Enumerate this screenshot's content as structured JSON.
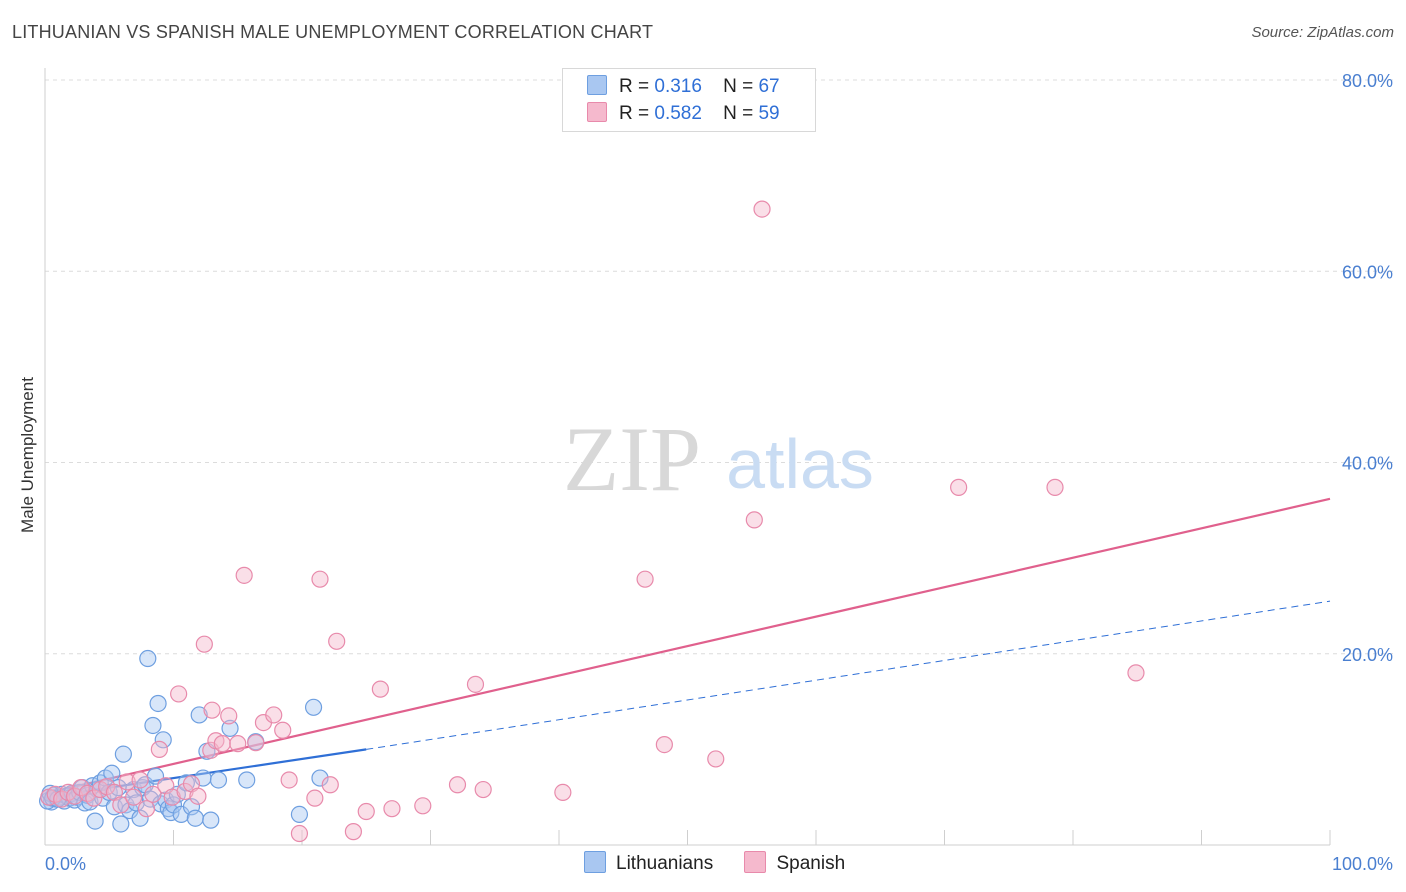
{
  "header": {
    "title": "LITHUANIAN VS SPANISH MALE UNEMPLOYMENT CORRELATION CHART",
    "source": "Source: ZipAtlas.com"
  },
  "watermark": {
    "zip": "ZIP",
    "atlas": "atlas"
  },
  "legend": {
    "rows": [
      {
        "r_label": "R =",
        "r_value": "0.316",
        "n_label": "N =",
        "n_value": "67",
        "color": "#a9c7f1"
      },
      {
        "r_label": "R =",
        "r_value": "0.582",
        "n_label": "N =",
        "n_value": "59",
        "color": "#f5b9cd"
      }
    ]
  },
  "bottom_legend": {
    "items": [
      {
        "label": "Lithuanians",
        "color": "#a9c7f1"
      },
      {
        "label": "Spanish",
        "color": "#f5b9cd"
      }
    ]
  },
  "colors": {
    "blue_fill": "#a9c7f1",
    "blue_stroke": "#6e9fe0",
    "blue_line": "#2f6fd6",
    "pink_fill": "#f5b9cd",
    "pink_stroke": "#e88aab",
    "pink_line": "#e0608d",
    "grid": "#dcdcdc",
    "tick_text": "#4a7fd0"
  },
  "chart_data": {
    "type": "scatter",
    "title": "LITHUANIAN VS SPANISH MALE UNEMPLOYMENT CORRELATION CHART",
    "xlabel": "",
    "ylabel": "Male Unemployment",
    "xlim": [
      0,
      100
    ],
    "ylim": [
      0,
      80
    ],
    "x_tick_labels": [
      {
        "value": 0,
        "label": "0.0%"
      },
      {
        "value": 100,
        "label": "100.0%"
      }
    ],
    "y_tick_labels": [
      {
        "value": 20,
        "label": "20.0%"
      },
      {
        "value": 40,
        "label": "40.0%"
      },
      {
        "value": 60,
        "label": "60.0%"
      },
      {
        "value": 80,
        "label": "80.0%"
      }
    ],
    "series": [
      {
        "name": "Lithuanians",
        "color": "#a9c7f1",
        "points": [
          [
            0.3,
            5.0
          ],
          [
            0.5,
            4.5
          ],
          [
            0.7,
            5.2
          ],
          [
            0.9,
            4.8
          ],
          [
            1.1,
            5.0
          ],
          [
            1.3,
            5.3
          ],
          [
            1.5,
            4.6
          ],
          [
            1.7,
            5.1
          ],
          [
            1.9,
            4.9
          ],
          [
            2.1,
            5.4
          ],
          [
            2.3,
            4.7
          ],
          [
            2.5,
            5.0
          ],
          [
            2.7,
            5.5
          ],
          [
            2.9,
            6.0
          ],
          [
            3.1,
            4.4
          ],
          [
            3.3,
            5.2
          ],
          [
            3.5,
            4.5
          ],
          [
            3.7,
            6.2
          ],
          [
            3.9,
            2.5
          ],
          [
            4.1,
            5.8
          ],
          [
            4.3,
            6.5
          ],
          [
            4.5,
            4.9
          ],
          [
            4.7,
            7.0
          ],
          [
            5.0,
            5.5
          ],
          [
            5.2,
            7.5
          ],
          [
            5.4,
            4.0
          ],
          [
            5.7,
            6.0
          ],
          [
            5.9,
            2.2
          ],
          [
            6.1,
            9.5
          ],
          [
            6.3,
            4.2
          ],
          [
            6.6,
            3.6
          ],
          [
            6.9,
            5.8
          ],
          [
            7.1,
            4.4
          ],
          [
            7.4,
            2.8
          ],
          [
            7.6,
            6.0
          ],
          [
            7.8,
            6.3
          ],
          [
            8.0,
            19.5
          ],
          [
            8.2,
            4.8
          ],
          [
            8.4,
            12.5
          ],
          [
            8.6,
            7.2
          ],
          [
            8.8,
            14.8
          ],
          [
            9.0,
            4.3
          ],
          [
            9.2,
            11.0
          ],
          [
            9.4,
            4.7
          ],
          [
            9.6,
            3.8
          ],
          [
            9.8,
            3.4
          ],
          [
            10.0,
            4.2
          ],
          [
            10.3,
            5.3
          ],
          [
            10.6,
            3.2
          ],
          [
            11.0,
            6.5
          ],
          [
            11.4,
            4.0
          ],
          [
            11.7,
            2.8
          ],
          [
            12.0,
            13.6
          ],
          [
            12.3,
            7.0
          ],
          [
            12.6,
            9.8
          ],
          [
            12.9,
            2.6
          ],
          [
            13.5,
            6.8
          ],
          [
            14.4,
            12.2
          ],
          [
            15.7,
            6.8
          ],
          [
            16.4,
            10.8
          ],
          [
            19.8,
            3.2
          ],
          [
            20.9,
            14.4
          ],
          [
            21.4,
            7.0
          ],
          [
            0.2,
            4.6
          ],
          [
            0.4,
            5.4
          ],
          [
            0.6,
            4.9
          ],
          [
            1.0,
            4.8
          ]
        ]
      },
      {
        "name": "Spanish",
        "color": "#f5b9cd",
        "points": [
          [
            0.3,
            5.0
          ],
          [
            0.8,
            5.3
          ],
          [
            1.3,
            4.8
          ],
          [
            1.8,
            5.5
          ],
          [
            2.3,
            5.1
          ],
          [
            2.8,
            6.0
          ],
          [
            3.3,
            5.4
          ],
          [
            3.8,
            4.9
          ],
          [
            4.3,
            5.8
          ],
          [
            4.8,
            6.1
          ],
          [
            5.4,
            5.5
          ],
          [
            5.9,
            4.2
          ],
          [
            6.4,
            6.6
          ],
          [
            6.9,
            5.0
          ],
          [
            7.4,
            6.8
          ],
          [
            7.9,
            3.8
          ],
          [
            8.4,
            5.3
          ],
          [
            8.9,
            10.0
          ],
          [
            9.4,
            6.2
          ],
          [
            9.9,
            5.0
          ],
          [
            10.4,
            15.8
          ],
          [
            10.9,
            5.6
          ],
          [
            11.4,
            6.4
          ],
          [
            11.9,
            5.1
          ],
          [
            12.4,
            21.0
          ],
          [
            12.9,
            9.9
          ],
          [
            13.0,
            14.1
          ],
          [
            13.3,
            10.9
          ],
          [
            13.8,
            10.6
          ],
          [
            14.3,
            13.5
          ],
          [
            15.0,
            10.6
          ],
          [
            15.5,
            28.2
          ],
          [
            16.4,
            10.7
          ],
          [
            17.0,
            12.8
          ],
          [
            17.8,
            13.6
          ],
          [
            18.5,
            12.0
          ],
          [
            19.0,
            6.8
          ],
          [
            19.8,
            1.2
          ],
          [
            21.0,
            4.9
          ],
          [
            21.4,
            27.8
          ],
          [
            22.2,
            6.3
          ],
          [
            22.7,
            21.3
          ],
          [
            24.0,
            1.4
          ],
          [
            25.0,
            3.5
          ],
          [
            26.1,
            16.3
          ],
          [
            27.0,
            3.8
          ],
          [
            29.4,
            4.1
          ],
          [
            32.1,
            6.3
          ],
          [
            33.5,
            16.8
          ],
          [
            34.1,
            5.8
          ],
          [
            40.3,
            5.5
          ],
          [
            46.7,
            27.8
          ],
          [
            48.2,
            10.5
          ],
          [
            52.2,
            9.0
          ],
          [
            55.2,
            34.0
          ],
          [
            55.8,
            66.5
          ],
          [
            71.1,
            37.4
          ],
          [
            78.6,
            37.4
          ],
          [
            84.9,
            18.0
          ]
        ]
      }
    ],
    "trend_lines": [
      {
        "series": "Lithuanians",
        "style": "solid",
        "x": [
          0,
          25
        ],
        "y": [
          5.0,
          10.0
        ]
      },
      {
        "series": "Lithuanians",
        "style": "dashed",
        "x": [
          25,
          100
        ],
        "y": [
          10.0,
          25.5
        ]
      },
      {
        "series": "Spanish",
        "style": "solid",
        "x": [
          0,
          100
        ],
        "y": [
          5.4,
          36.2
        ]
      }
    ]
  }
}
